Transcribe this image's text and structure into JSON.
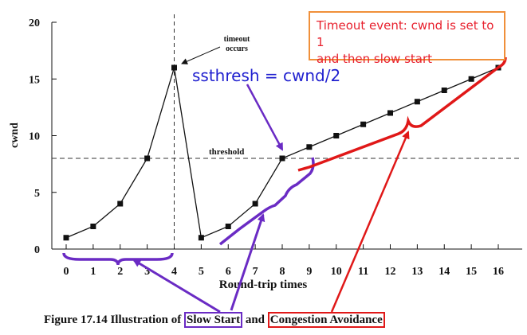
{
  "chart_data": {
    "type": "line",
    "xlabel": "Round-trip times",
    "ylabel": "cwnd",
    "xlim": [
      0,
      16
    ],
    "ylim": [
      0,
      20
    ],
    "x_ticks": [
      "0",
      "1",
      "2",
      "3",
      "4",
      "5",
      "6",
      "7",
      "8",
      "9",
      "10",
      "11",
      "12",
      "13",
      "14",
      "15",
      "16"
    ],
    "y_ticks": [
      "0",
      "5",
      "10",
      "15",
      "20"
    ],
    "series": [
      {
        "points": [
          [
            0,
            1
          ],
          [
            1,
            2
          ],
          [
            2,
            4
          ],
          [
            3,
            8
          ],
          [
            4,
            16
          ],
          [
            5,
            1
          ],
          [
            6,
            2
          ],
          [
            7,
            4
          ],
          [
            8,
            8
          ],
          [
            9,
            9
          ],
          [
            10,
            10
          ],
          [
            11,
            11
          ],
          [
            12,
            12
          ],
          [
            13,
            13
          ],
          [
            14,
            14
          ],
          [
            15,
            15
          ],
          [
            16,
            16
          ]
        ]
      }
    ],
    "threshold": 8,
    "threshold_label": "threshold",
    "timeout_x": 4,
    "timeout_label_line1": "timeout",
    "timeout_label_line2": "occurs",
    "grid": false
  },
  "annotations": {
    "callout_line1": "Timeout event: cwnd is set to 1",
    "callout_line2": "and then slow start",
    "ssthresh": "ssthresh = cwnd/2"
  },
  "caption": {
    "prefix": "Figure 17.14  Illustration of ",
    "slow_start": "Slow Start",
    "middle": " and ",
    "congestion_avoidance": "Congestion Avoidance"
  },
  "colors": {
    "purple": "#6a2bc4",
    "red": "#e01818",
    "orange": "#f0903a",
    "blue": "#1f1fcf"
  }
}
